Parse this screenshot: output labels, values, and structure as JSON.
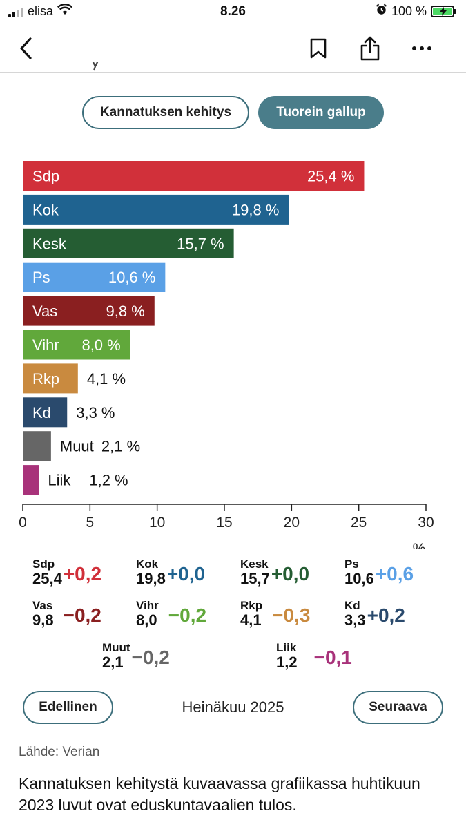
{
  "status": {
    "carrier": "elisa",
    "time": "8.26",
    "battery": "100 %"
  },
  "nav": {
    "back_icon": "chevron-left-icon",
    "bookmark_icon": "bookmark-icon",
    "share_icon": "share-icon",
    "more_icon": "more-icon"
  },
  "toggle": {
    "history_label": "Kannatuksen kehitys",
    "latest_label": "Tuorein gallup"
  },
  "colors": {
    "Sdp": "#d1303a",
    "Kok": "#1f6390",
    "Kesk": "#255d33",
    "Ps": "#5aa0e6",
    "Vas": "#8a1f20",
    "Vihr": "#61a83b",
    "Rkp": "#c98a3f",
    "Kd": "#2a4a6d",
    "Muut": "#666666",
    "Liik": "#a8327a",
    "accent": "#4a7d8a"
  },
  "chart_data": {
    "type": "bar",
    "orientation": "horizontal",
    "categories": [
      "Sdp",
      "Kok",
      "Kesk",
      "Ps",
      "Vas",
      "Vihr",
      "Rkp",
      "Kd",
      "Muut",
      "Liik"
    ],
    "values": [
      25.4,
      19.8,
      15.7,
      10.6,
      9.8,
      8.0,
      4.1,
      3.3,
      2.1,
      1.2
    ],
    "value_labels": [
      "25,4 %",
      "19,8 %",
      "15,7 %",
      "10,6 %",
      "9,8 %",
      "8,0 %",
      "4,1 %",
      "3,3 %",
      "2,1 %",
      "1,2 %"
    ],
    "xlabel": "%",
    "xlim": [
      0,
      30
    ],
    "xticks": [
      0,
      5,
      10,
      15,
      20,
      25,
      30
    ],
    "xtick_labels": [
      "0",
      "5",
      "10",
      "15",
      "20",
      "25",
      "30"
    ],
    "grid": false
  },
  "changes": [
    {
      "party": "Sdp",
      "value": "25,4",
      "delta": "+0,2",
      "delta_color": "#d1303a"
    },
    {
      "party": "Kok",
      "value": "19,8",
      "delta": "+0,0",
      "delta_color": "#1f6390"
    },
    {
      "party": "Kesk",
      "value": "15,7",
      "delta": "+0,0",
      "delta_color": "#255d33"
    },
    {
      "party": "Ps",
      "value": "10,6",
      "delta": "+0,6",
      "delta_color": "#5aa0e6"
    },
    {
      "party": "Vas",
      "value": "9,8",
      "delta": "−0,2",
      "delta_color": "#8a1f20"
    },
    {
      "party": "Vihr",
      "value": "8,0",
      "delta": "−0,2",
      "delta_color": "#61a83b"
    },
    {
      "party": "Rkp",
      "value": "4,1",
      "delta": "−0,3",
      "delta_color": "#c98a3f"
    },
    {
      "party": "Kd",
      "value": "3,3",
      "delta": "+0,2",
      "delta_color": "#2a4a6d"
    },
    {
      "party": "Muut",
      "value": "2,1",
      "delta": "−0,2",
      "delta_color": "#666666"
    },
    {
      "party": "Liik",
      "value": "1,2",
      "delta": "−0,1",
      "delta_color": "#a8327a"
    }
  ],
  "pager": {
    "prev_label": "Edellinen",
    "period": "Heinäkuu 2025",
    "next_label": "Seuraava"
  },
  "source": "Lähde: Verian",
  "caption": "Kannatuksen kehitystä kuvaavassa grafiikassa huhtikuun 2023 luvut ovat eduskuntavaalien tulos."
}
